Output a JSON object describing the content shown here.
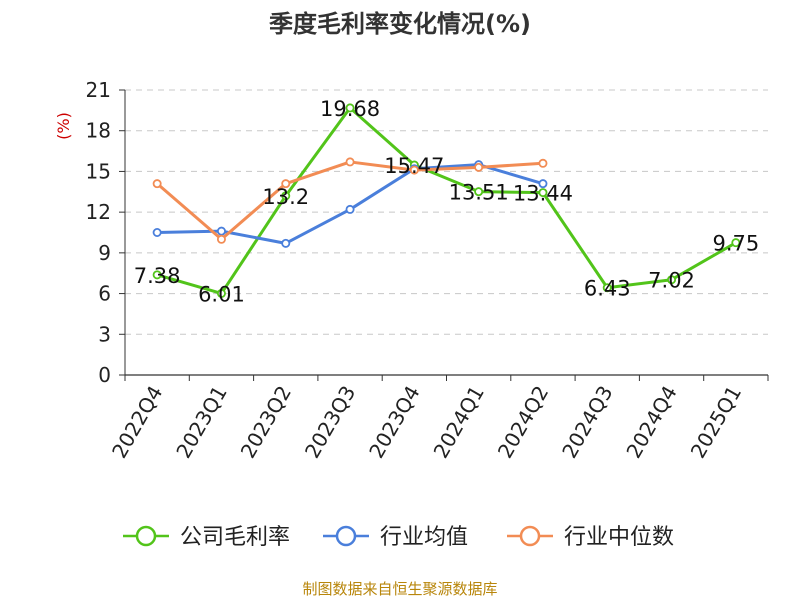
{
  "chart_data": {
    "type": "line",
    "title": "季度毛利率变化情况(%)",
    "unit_label": "(%)",
    "categories": [
      "2022Q4",
      "2023Q1",
      "2023Q2",
      "2023Q3",
      "2023Q4",
      "2024Q1",
      "2024Q2",
      "2024Q3",
      "2024Q4",
      "2025Q1"
    ],
    "ylim": [
      0,
      21
    ],
    "yticks": [
      0,
      3,
      6,
      9,
      12,
      15,
      18,
      21
    ],
    "grid": true,
    "legend_position": "bottom",
    "series": [
      {
        "name": "公司毛利率",
        "color": "#52c41a",
        "values": [
          7.38,
          6.01,
          13.2,
          19.68,
          15.47,
          13.51,
          13.44,
          6.43,
          7.02,
          9.75
        ],
        "labels": [
          "7.38",
          "6.01",
          "13.2",
          "19.68",
          "15.47",
          "13.51",
          "13.44",
          "6.43",
          "7.02",
          "9.75"
        ]
      },
      {
        "name": "行业均值",
        "color": "#4a7fdb",
        "values": [
          10.5,
          10.6,
          9.7,
          12.2,
          15.2,
          15.5,
          14.1,
          null,
          null,
          null
        ]
      },
      {
        "name": "行业中位数",
        "color": "#f28c54",
        "values": [
          14.1,
          10.0,
          14.1,
          15.7,
          15.1,
          15.3,
          15.6,
          null,
          null,
          null
        ]
      }
    ]
  },
  "source_text": "制图数据来自恒生聚源数据库"
}
